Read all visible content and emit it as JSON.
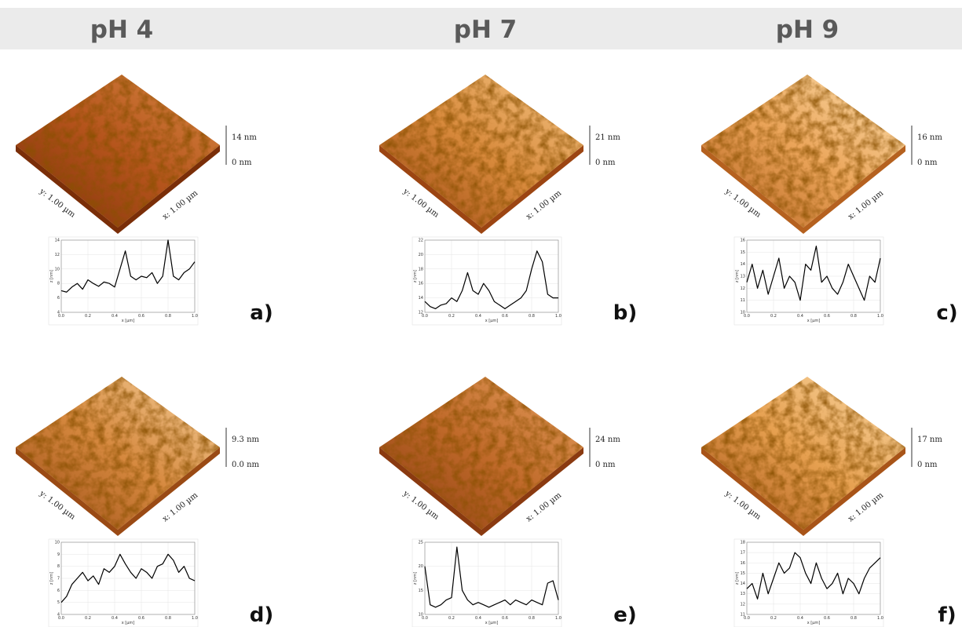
{
  "header": {
    "columns": [
      "pH 4",
      "pH 7",
      "pH 9"
    ]
  },
  "panels": [
    {
      "label": "a)",
      "surface": {
        "z_max": "14 nm",
        "z_min": "0 nm",
        "y_size": "y: 1.00 µm",
        "x_size": "x: 1.00 µm"
      },
      "profile": {
        "type": "line",
        "xlabel": "x [µm]",
        "ylabel": "z [nm]",
        "x": [
          0,
          0.04,
          0.08,
          0.12,
          0.16,
          0.2,
          0.24,
          0.28,
          0.32,
          0.36,
          0.4,
          0.44,
          0.48,
          0.52,
          0.56,
          0.6,
          0.64,
          0.68,
          0.72,
          0.76,
          0.8,
          0.84,
          0.88,
          0.92,
          0.96,
          1
        ],
        "values": [
          7,
          6.8,
          7.5,
          8,
          7.2,
          8.5,
          8,
          7.6,
          8.2,
          8,
          7.5,
          10,
          12.5,
          9,
          8.5,
          9,
          8.8,
          9.5,
          8,
          9,
          14,
          9,
          8.5,
          9.5,
          10,
          11
        ],
        "xlim": [
          0,
          1
        ],
        "ylim": [
          4,
          14
        ],
        "xticks": [
          {
            "value": 0,
            "label": "0.0"
          },
          0.2,
          0.4,
          0.6,
          0.8,
          {
            "value": 1,
            "label": "1.0"
          }
        ],
        "yticks": [
          4,
          6,
          8,
          10,
          12,
          14
        ]
      }
    },
    {
      "label": "b)",
      "surface": {
        "z_max": "21 nm",
        "z_min": "0 nm",
        "y_size": "y: 1.00 µm",
        "x_size": "x: 1.00 µm"
      },
      "profile": {
        "type": "line",
        "xlabel": "x [µm]",
        "ylabel": "z [nm]",
        "x": [
          0,
          0.04,
          0.08,
          0.12,
          0.16,
          0.2,
          0.24,
          0.28,
          0.32,
          0.36,
          0.4,
          0.44,
          0.48,
          0.52,
          0.56,
          0.6,
          0.64,
          0.68,
          0.72,
          0.76,
          0.8,
          0.84,
          0.88,
          0.92,
          0.96,
          1
        ],
        "values": [
          13.5,
          12.8,
          12.5,
          13,
          13.2,
          14,
          13.5,
          15,
          17.5,
          15,
          14.5,
          16,
          15,
          13.5,
          13,
          12.5,
          13,
          13.5,
          14,
          15,
          18,
          20.5,
          19,
          14.5,
          14,
          14
        ],
        "xlim": [
          0,
          1
        ],
        "ylim": [
          12,
          22
        ],
        "xticks": [
          {
            "value": 0,
            "label": "0.0"
          },
          0.2,
          0.4,
          0.6,
          0.8,
          {
            "value": 1,
            "label": "1.0"
          }
        ],
        "yticks": [
          12,
          14,
          16,
          18,
          20,
          22
        ]
      }
    },
    {
      "label": "c)",
      "surface": {
        "z_max": "16 nm",
        "z_min": "0 nm",
        "y_size": "y: 1.00 µm",
        "x_size": "x: 1.00 µm"
      },
      "profile": {
        "type": "line",
        "xlabel": "x [µm]",
        "ylabel": "z [nm]",
        "x": [
          0,
          0.04,
          0.08,
          0.12,
          0.16,
          0.2,
          0.24,
          0.28,
          0.32,
          0.36,
          0.4,
          0.44,
          0.48,
          0.52,
          0.56,
          0.6,
          0.64,
          0.68,
          0.72,
          0.76,
          0.8,
          0.84,
          0.88,
          0.92,
          0.96,
          1
        ],
        "values": [
          12.5,
          14,
          12,
          13.5,
          11.5,
          13,
          14.5,
          12,
          13,
          12.5,
          11,
          14,
          13.5,
          15.5,
          12.5,
          13,
          12,
          11.5,
          12.5,
          14,
          13,
          12,
          11,
          13,
          12.5,
          14.5
        ],
        "xlim": [
          0,
          1
        ],
        "ylim": [
          10,
          16
        ],
        "xticks": [
          {
            "value": 0,
            "label": "0.0"
          },
          0.2,
          0.4,
          0.6,
          0.8,
          {
            "value": 1,
            "label": "1.0"
          }
        ],
        "yticks": [
          10,
          11,
          12,
          13,
          14,
          15,
          16
        ]
      }
    },
    {
      "label": "d)",
      "surface": {
        "z_max": "9.3 nm",
        "z_min": "0.0 nm",
        "y_size": "y: 1.00 µm",
        "x_size": "x: 1.00 µm"
      },
      "profile": {
        "type": "line",
        "xlabel": "x [µm]",
        "ylabel": "z [nm]",
        "x": [
          0,
          0.04,
          0.08,
          0.12,
          0.16,
          0.2,
          0.24,
          0.28,
          0.32,
          0.36,
          0.4,
          0.44,
          0.48,
          0.52,
          0.56,
          0.6,
          0.64,
          0.68,
          0.72,
          0.76,
          0.8,
          0.84,
          0.88,
          0.92,
          0.96,
          1
        ],
        "values": [
          5,
          5.5,
          6.5,
          7,
          7.5,
          6.8,
          7.2,
          6.5,
          7.8,
          7.5,
          8,
          9,
          8.2,
          7.5,
          7,
          7.8,
          7.5,
          7,
          8,
          8.2,
          9,
          8.5,
          7.5,
          8,
          7,
          6.8
        ],
        "xlim": [
          0,
          1
        ],
        "ylim": [
          4,
          10
        ],
        "xticks": [
          {
            "value": 0,
            "label": "0.0"
          },
          0.2,
          0.4,
          0.6,
          0.8,
          {
            "value": 1,
            "label": "1.0"
          }
        ],
        "yticks": [
          4,
          5,
          6,
          7,
          8,
          9,
          10
        ]
      }
    },
    {
      "label": "e)",
      "surface": {
        "z_max": "24 nm",
        "z_min": "0 nm",
        "y_size": "y: 1.00 µm",
        "x_size": "x: 1.00 µm"
      },
      "profile": {
        "type": "line",
        "xlabel": "x [µm]",
        "ylabel": "z [nm]",
        "x": [
          0,
          0.04,
          0.08,
          0.12,
          0.16,
          0.2,
          0.24,
          0.28,
          0.32,
          0.36,
          0.4,
          0.44,
          0.48,
          0.52,
          0.56,
          0.6,
          0.64,
          0.68,
          0.72,
          0.76,
          0.8,
          0.84,
          0.88,
          0.92,
          0.96,
          1
        ],
        "values": [
          20,
          12,
          11.5,
          12,
          13,
          13.5,
          24,
          15,
          13,
          12,
          12.5,
          12,
          11.5,
          12,
          12.5,
          13,
          12,
          13,
          12.5,
          12,
          13,
          12.5,
          12,
          16.5,
          17,
          13
        ],
        "xlim": [
          0,
          1
        ],
        "ylim": [
          10,
          25
        ],
        "xticks": [
          {
            "value": 0,
            "label": "0.0"
          },
          0.2,
          0.4,
          0.6,
          0.8,
          {
            "value": 1,
            "label": "1.0"
          }
        ],
        "yticks": [
          10,
          15,
          20,
          25
        ]
      }
    },
    {
      "label": "f)",
      "surface": {
        "z_max": "17 nm",
        "z_min": "0 nm",
        "y_size": "y: 1.00 µm",
        "x_size": "x: 1.00 µm"
      },
      "profile": {
        "type": "line",
        "xlabel": "x [µm]",
        "ylabel": "z [nm]",
        "x": [
          0,
          0.04,
          0.08,
          0.12,
          0.16,
          0.2,
          0.24,
          0.28,
          0.32,
          0.36,
          0.4,
          0.44,
          0.48,
          0.52,
          0.56,
          0.6,
          0.64,
          0.68,
          0.72,
          0.76,
          0.8,
          0.84,
          0.88,
          0.92,
          0.96,
          1
        ],
        "values": [
          13.5,
          14,
          12.5,
          15,
          13,
          14.5,
          16,
          15,
          15.5,
          17,
          16.5,
          15,
          14,
          16,
          14.5,
          13.5,
          14,
          15,
          13,
          14.5,
          14,
          13,
          14.5,
          15.5,
          16,
          16.5
        ],
        "xlim": [
          0,
          1
        ],
        "ylim": [
          11,
          18
        ],
        "xticks": [
          {
            "value": 0,
            "label": "0.0"
          },
          0.2,
          0.4,
          0.6,
          0.8,
          {
            "value": 1,
            "label": "1.0"
          }
        ],
        "yticks": [
          11,
          12,
          13,
          14,
          15,
          16,
          17,
          18
        ]
      }
    }
  ]
}
